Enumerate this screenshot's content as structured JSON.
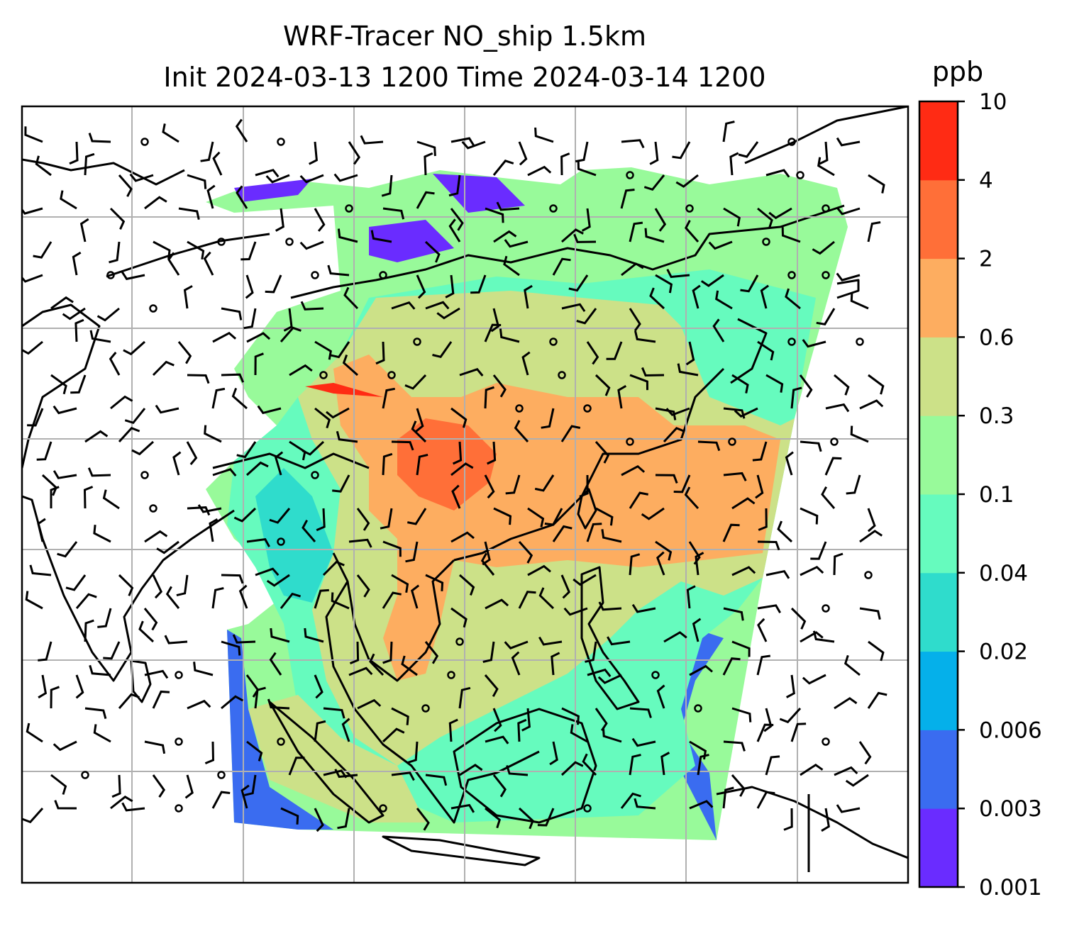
{
  "title": {
    "line1": "WRF-Tracer NO_ship 1.5km",
    "line2": "Init 2024-03-13 1200 Time 2024-03-14 1200"
  },
  "colorbar": {
    "unit": "ppb",
    "levels": [
      "0.001",
      "0.003",
      "0.006",
      "0.02",
      "0.04",
      "0.1",
      "0.3",
      "0.6",
      "2",
      "4",
      "10"
    ],
    "colors": [
      "#6a2cff",
      "#3a6cf0",
      "#05b0ea",
      "#2fdccc",
      "#66fbbe",
      "#98fa9a",
      "#cce188",
      "#fdad60",
      "#ff6f38",
      "#ff2b14"
    ]
  },
  "map": {
    "gridlines": true,
    "coastline_color": "#000000",
    "grid_color": "#b0b0b0"
  }
}
